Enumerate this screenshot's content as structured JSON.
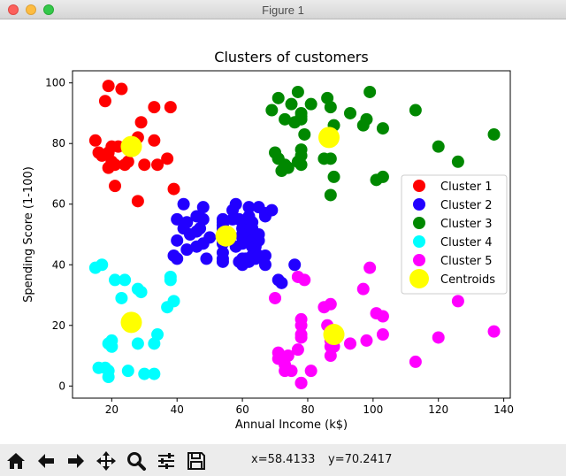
{
  "window": {
    "title": "Figure 1"
  },
  "toolbar": {
    "buttons": [
      {
        "name": "home-icon"
      },
      {
        "name": "back-icon"
      },
      {
        "name": "forward-icon"
      },
      {
        "name": "pan-icon"
      },
      {
        "name": "zoom-icon"
      },
      {
        "name": "configure-subplots-icon"
      },
      {
        "name": "save-icon"
      }
    ],
    "coord_x": "x=58.4133",
    "coord_y": "y=70.2417"
  },
  "chart_data": {
    "type": "scatter",
    "title": "Clusters of customers",
    "xlabel": "Annual Income (k$)",
    "ylabel": "Spending Score (1-100)",
    "xlim": [
      8,
      142
    ],
    "ylim": [
      -4,
      104
    ],
    "xticks": [
      20,
      40,
      60,
      80,
      100,
      120,
      140
    ],
    "yticks": [
      0,
      20,
      40,
      60,
      80,
      100
    ],
    "grid": false,
    "legend_position": "right",
    "series": [
      {
        "name": "Cluster 1",
        "color": "#ff0000",
        "points": [
          [
            15,
            81
          ],
          [
            16,
            77
          ],
          [
            17,
            76
          ],
          [
            18,
            94
          ],
          [
            19,
            72
          ],
          [
            19,
            77
          ],
          [
            20,
            79
          ],
          [
            20,
            74
          ],
          [
            21,
            73
          ],
          [
            21,
            66
          ],
          [
            22,
            79
          ],
          [
            23,
            98
          ],
          [
            24,
            73
          ],
          [
            25,
            74
          ],
          [
            28,
            82
          ],
          [
            28,
            61
          ],
          [
            29,
            87
          ],
          [
            30,
            73
          ],
          [
            33,
            92
          ],
          [
            33,
            81
          ],
          [
            34,
            73
          ],
          [
            37,
            75
          ],
          [
            38,
            92
          ],
          [
            39,
            65
          ],
          [
            19,
            99
          ],
          [
            26,
            78
          ]
        ]
      },
      {
        "name": "Cluster 2",
        "color": "#2200ff",
        "points": [
          [
            39,
            43
          ],
          [
            40,
            48
          ],
          [
            40,
            55
          ],
          [
            40,
            42
          ],
          [
            42,
            52
          ],
          [
            42,
            60
          ],
          [
            43,
            54
          ],
          [
            43,
            45
          ],
          [
            44,
            50
          ],
          [
            46,
            51
          ],
          [
            46,
            46
          ],
          [
            46,
            56
          ],
          [
            47,
            52
          ],
          [
            48,
            59
          ],
          [
            48,
            47
          ],
          [
            48,
            55
          ],
          [
            49,
            42
          ],
          [
            50,
            49
          ],
          [
            54,
            53
          ],
          [
            54,
            47
          ],
          [
            54,
            54
          ],
          [
            54,
            48
          ],
          [
            54,
            52
          ],
          [
            54,
            42
          ],
          [
            54,
            51
          ],
          [
            54,
            55
          ],
          [
            54,
            41
          ],
          [
            54,
            44
          ],
          [
            57,
            58
          ],
          [
            57,
            55
          ],
          [
            58,
            60
          ],
          [
            58,
            46
          ],
          [
            59,
            55
          ],
          [
            59,
            41
          ],
          [
            60,
            49
          ],
          [
            60,
            40
          ],
          [
            60,
            42
          ],
          [
            60,
            52
          ],
          [
            60,
            47
          ],
          [
            60,
            50
          ],
          [
            61,
            42
          ],
          [
            61,
            49
          ],
          [
            62,
            41
          ],
          [
            62,
            48
          ],
          [
            62,
            59
          ],
          [
            62,
            55
          ],
          [
            62,
            56
          ],
          [
            62,
            42
          ],
          [
            63,
            50
          ],
          [
            63,
            46
          ],
          [
            63,
            43
          ],
          [
            63,
            48
          ],
          [
            63,
            52
          ],
          [
            63,
            54
          ],
          [
            64,
            42
          ],
          [
            64,
            46
          ],
          [
            65,
            48
          ],
          [
            65,
            50
          ],
          [
            65,
            43
          ],
          [
            65,
            59
          ],
          [
            67,
            43
          ],
          [
            67,
            57
          ],
          [
            67,
            56
          ],
          [
            67,
            40
          ],
          [
            69,
            58
          ],
          [
            71,
            35
          ],
          [
            72,
            34
          ],
          [
            76,
            40
          ]
        ]
      },
      {
        "name": "Cluster 3",
        "color": "#008800",
        "points": [
          [
            69,
            91
          ],
          [
            70,
            77
          ],
          [
            71,
            95
          ],
          [
            71,
            75
          ],
          [
            71,
            75
          ],
          [
            72,
            71
          ],
          [
            73,
            88
          ],
          [
            73,
            73
          ],
          [
            74,
            72
          ],
          [
            75,
            93
          ],
          [
            76,
            87
          ],
          [
            77,
            97
          ],
          [
            77,
            74
          ],
          [
            78,
            90
          ],
          [
            78,
            76
          ],
          [
            78,
            88
          ],
          [
            78,
            89
          ],
          [
            78,
            78
          ],
          [
            78,
            73
          ],
          [
            79,
            83
          ],
          [
            81,
            93
          ],
          [
            85,
            75
          ],
          [
            86,
            95
          ],
          [
            87,
            63
          ],
          [
            87,
            75
          ],
          [
            87,
            92
          ],
          [
            88,
            69
          ],
          [
            88,
            86
          ],
          [
            93,
            90
          ],
          [
            97,
            86
          ],
          [
            98,
            88
          ],
          [
            99,
            97
          ],
          [
            101,
            68
          ],
          [
            103,
            85
          ],
          [
            103,
            69
          ],
          [
            113,
            91
          ],
          [
            120,
            79
          ],
          [
            126,
            74
          ],
          [
            137,
            83
          ]
        ]
      },
      {
        "name": "Cluster 4",
        "color": "#00ffff",
        "points": [
          [
            15,
            39
          ],
          [
            16,
            6
          ],
          [
            17,
            40
          ],
          [
            18,
            6
          ],
          [
            19,
            3
          ],
          [
            19,
            14
          ],
          [
            20,
            15
          ],
          [
            20,
            13
          ],
          [
            21,
            35
          ],
          [
            23,
            29
          ],
          [
            24,
            35
          ],
          [
            25,
            5
          ],
          [
            28,
            14
          ],
          [
            28,
            32
          ],
          [
            29,
            31
          ],
          [
            30,
            4
          ],
          [
            33,
            4
          ],
          [
            33,
            14
          ],
          [
            34,
            17
          ],
          [
            37,
            26
          ],
          [
            38,
            35
          ],
          [
            38,
            36
          ],
          [
            39,
            28
          ],
          [
            19,
            5
          ]
        ]
      },
      {
        "name": "Cluster 5",
        "color": "#ff00ff",
        "points": [
          [
            70,
            29
          ],
          [
            71,
            11
          ],
          [
            71,
            9
          ],
          [
            73,
            5
          ],
          [
            73,
            7
          ],
          [
            74,
            10
          ],
          [
            75,
            5
          ],
          [
            77,
            12
          ],
          [
            77,
            36
          ],
          [
            78,
            22
          ],
          [
            78,
            17
          ],
          [
            78,
            20
          ],
          [
            78,
            16
          ],
          [
            78,
            1
          ],
          [
            78,
            1
          ],
          [
            79,
            35
          ],
          [
            81,
            5
          ],
          [
            85,
            26
          ],
          [
            86,
            20
          ],
          [
            87,
            27
          ],
          [
            87,
            13
          ],
          [
            87,
            10
          ],
          [
            87,
            15
          ],
          [
            88,
            13
          ],
          [
            88,
            15
          ],
          [
            93,
            14
          ],
          [
            97,
            32
          ],
          [
            98,
            15
          ],
          [
            99,
            39
          ],
          [
            101,
            24
          ],
          [
            103,
            17
          ],
          [
            103,
            23
          ],
          [
            113,
            8
          ],
          [
            120,
            16
          ],
          [
            126,
            28
          ],
          [
            137,
            18
          ]
        ]
      },
      {
        "name": "Centroids",
        "color": "#ffff00",
        "marker": "large",
        "points": [
          [
            26,
            79
          ],
          [
            55,
            49.5
          ],
          [
            86.5,
            82
          ],
          [
            26,
            21
          ],
          [
            88,
            17
          ]
        ]
      }
    ]
  }
}
